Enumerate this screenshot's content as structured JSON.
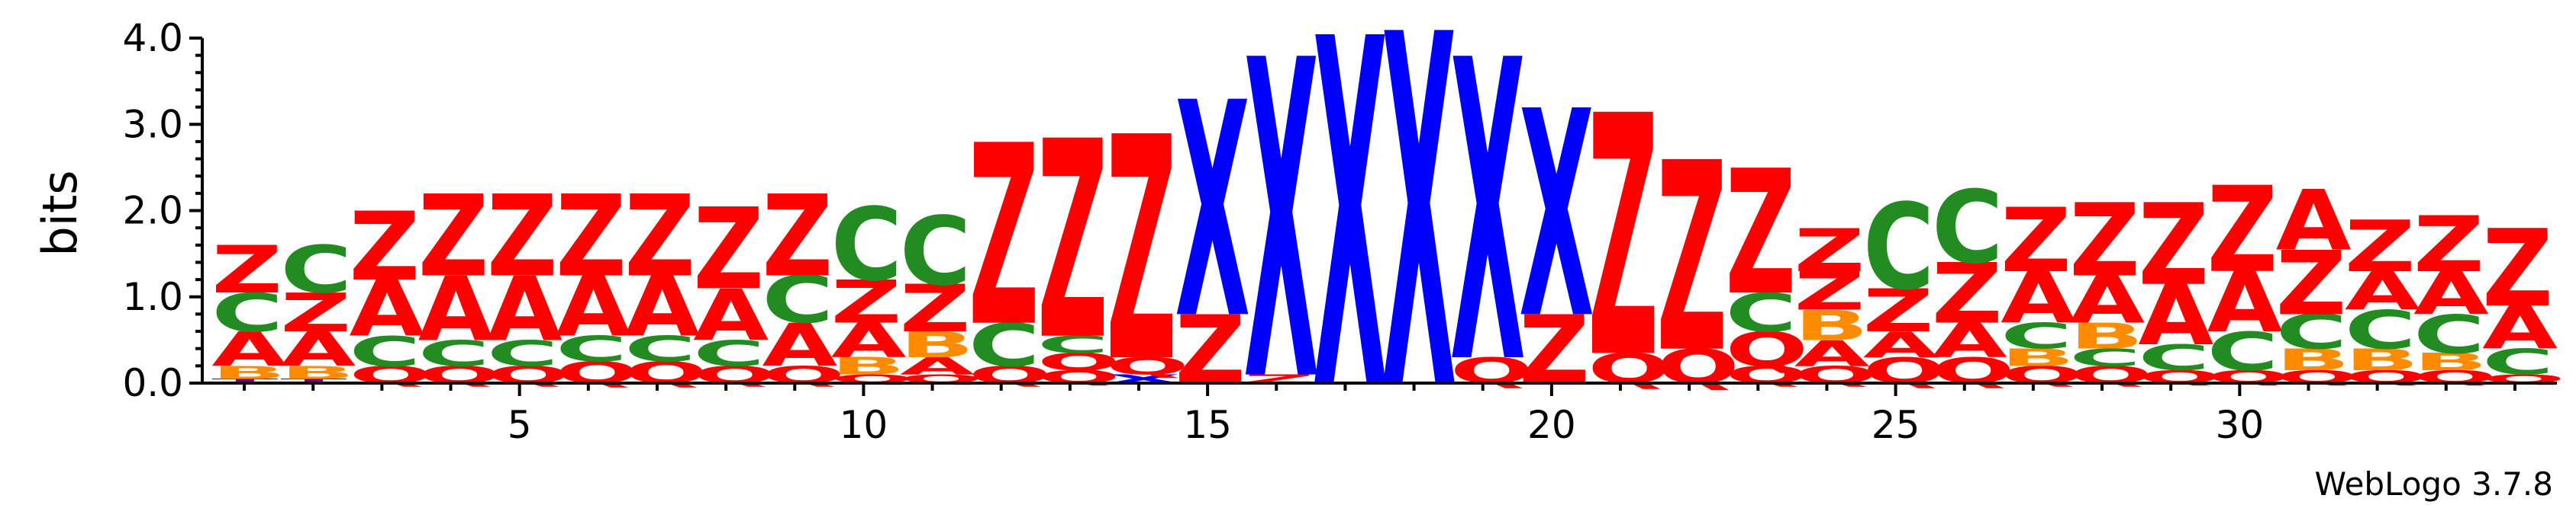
{
  "chart_data": {
    "type": "sequence-logo",
    "ylabel": "bits",
    "ylim": [
      0,
      4.0
    ],
    "yticks": [
      "0.0",
      "1.0",
      "2.0",
      "3.0",
      "4.0"
    ],
    "xticks": [
      5,
      10,
      15,
      20,
      25,
      30
    ],
    "credit": "WebLogo 3.7.8",
    "colors": {
      "Z": "#ff0000",
      "A": "#ff0000",
      "Q": "#ff0000",
      "C": "#228b22",
      "B": "#ff8c00",
      "X": "#0000ff",
      "T": "#800080"
    },
    "positions": [
      {
        "pos": 1,
        "stack": [
          [
            "T",
            0.05
          ],
          [
            "B",
            0.15
          ],
          [
            "A",
            0.4
          ],
          [
            "C",
            0.45
          ],
          [
            "Z",
            0.55
          ]
        ]
      },
      {
        "pos": 2,
        "stack": [
          [
            "T",
            0.05
          ],
          [
            "B",
            0.15
          ],
          [
            "A",
            0.4
          ],
          [
            "Z",
            0.45
          ],
          [
            "C",
            0.55
          ]
        ]
      },
      {
        "pos": 3,
        "stack": [
          [
            "Q",
            0.2
          ],
          [
            "C",
            0.35
          ],
          [
            "A",
            0.65
          ],
          [
            "Z",
            0.8
          ]
        ]
      },
      {
        "pos": 4,
        "stack": [
          [
            "Q",
            0.2
          ],
          [
            "C",
            0.3
          ],
          [
            "A",
            0.75
          ],
          [
            "Z",
            0.95
          ]
        ]
      },
      {
        "pos": 5,
        "stack": [
          [
            "Q",
            0.2
          ],
          [
            "C",
            0.3
          ],
          [
            "A",
            0.75
          ],
          [
            "Z",
            0.95
          ]
        ]
      },
      {
        "pos": 6,
        "stack": [
          [
            "Q",
            0.25
          ],
          [
            "C",
            0.3
          ],
          [
            "A",
            0.7
          ],
          [
            "Z",
            0.95
          ]
        ]
      },
      {
        "pos": 7,
        "stack": [
          [
            "Q",
            0.25
          ],
          [
            "C",
            0.3
          ],
          [
            "A",
            0.7
          ],
          [
            "Z",
            0.95
          ]
        ]
      },
      {
        "pos": 8,
        "stack": [
          [
            "Q",
            0.2
          ],
          [
            "C",
            0.3
          ],
          [
            "A",
            0.6
          ],
          [
            "Z",
            0.95
          ]
        ]
      },
      {
        "pos": 9,
        "stack": [
          [
            "Q",
            0.2
          ],
          [
            "A",
            0.5
          ],
          [
            "C",
            0.55
          ],
          [
            "Z",
            0.95
          ]
        ]
      },
      {
        "pos": 10,
        "stack": [
          [
            "Q",
            0.1
          ],
          [
            "B",
            0.2
          ],
          [
            "A",
            0.4
          ],
          [
            "Z",
            0.5
          ],
          [
            "C",
            0.85
          ]
        ]
      },
      {
        "pos": 11,
        "stack": [
          [
            "Q",
            0.1
          ],
          [
            "A",
            0.2
          ],
          [
            "B",
            0.3
          ],
          [
            "Z",
            0.55
          ],
          [
            "C",
            0.8
          ]
        ]
      },
      {
        "pos": 12,
        "stack": [
          [
            "Q",
            0.2
          ],
          [
            "C",
            0.5
          ],
          [
            "Z",
            2.1
          ]
        ]
      },
      {
        "pos": 13,
        "stack": [
          [
            "Q",
            0.15
          ],
          [
            "Q",
            0.2
          ],
          [
            "C",
            0.2
          ],
          [
            "Z",
            2.3
          ]
        ]
      },
      {
        "pos": 14,
        "stack": [
          [
            "X",
            0.1
          ],
          [
            "Q",
            0.2
          ],
          [
            "Z",
            2.6
          ]
        ]
      },
      {
        "pos": 15,
        "stack": [
          [
            "Z",
            0.8
          ],
          [
            "X",
            2.5
          ]
        ]
      },
      {
        "pos": 16,
        "stack": [
          [
            "Z",
            0.1
          ],
          [
            "X",
            3.7
          ]
        ]
      },
      {
        "pos": 17,
        "stack": [
          [
            "X",
            4.05
          ]
        ]
      },
      {
        "pos": 18,
        "stack": [
          [
            "X",
            4.1
          ]
        ]
      },
      {
        "pos": 19,
        "stack": [
          [
            "Q",
            0.3
          ],
          [
            "X",
            3.5
          ]
        ]
      },
      {
        "pos": 20,
        "stack": [
          [
            "Z",
            0.8
          ],
          [
            "X",
            2.4
          ]
        ]
      },
      {
        "pos": 21,
        "stack": [
          [
            "Q",
            0.35
          ],
          [
            "Z",
            2.8
          ]
        ]
      },
      {
        "pos": 22,
        "stack": [
          [
            "Q",
            0.4
          ],
          [
            "Z",
            2.2
          ]
        ]
      },
      {
        "pos": 23,
        "stack": [
          [
            "Q",
            0.2
          ],
          [
            "Q",
            0.4
          ],
          [
            "C",
            0.45
          ],
          [
            "Z",
            1.45
          ]
        ]
      },
      {
        "pos": 24,
        "stack": [
          [
            "Q",
            0.2
          ],
          [
            "A",
            0.3
          ],
          [
            "B",
            0.35
          ],
          [
            "Z",
            0.45
          ],
          [
            "Z",
            0.5
          ]
        ]
      },
      {
        "pos": 25,
        "stack": [
          [
            "Q",
            0.3
          ],
          [
            "A",
            0.3
          ],
          [
            "Z",
            0.5
          ],
          [
            "C",
            1.0
          ]
        ]
      },
      {
        "pos": 26,
        "stack": [
          [
            "Q",
            0.3
          ],
          [
            "A",
            0.4
          ],
          [
            "Z",
            0.7
          ],
          [
            "C",
            0.85
          ]
        ]
      },
      {
        "pos": 27,
        "stack": [
          [
            "Q",
            0.2
          ],
          [
            "B",
            0.2
          ],
          [
            "C",
            0.3
          ],
          [
            "A",
            0.6
          ],
          [
            "Z",
            0.75
          ]
        ]
      },
      {
        "pos": 28,
        "stack": [
          [
            "Q",
            0.2
          ],
          [
            "C",
            0.2
          ],
          [
            "B",
            0.3
          ],
          [
            "A",
            0.55
          ],
          [
            "Z",
            0.85
          ]
        ]
      },
      {
        "pos": 29,
        "stack": [
          [
            "Q",
            0.15
          ],
          [
            "C",
            0.3
          ],
          [
            "A",
            0.7
          ],
          [
            "Z",
            0.95
          ]
        ]
      },
      {
        "pos": 30,
        "stack": [
          [
            "Q",
            0.15
          ],
          [
            "C",
            0.45
          ],
          [
            "A",
            0.7
          ],
          [
            "Z",
            1.0
          ]
        ]
      },
      {
        "pos": 31,
        "stack": [
          [
            "Q",
            0.15
          ],
          [
            "B",
            0.25
          ],
          [
            "C",
            0.4
          ],
          [
            "Z",
            0.75
          ],
          [
            "A",
            0.7
          ]
        ]
      },
      {
        "pos": 32,
        "stack": [
          [
            "Q",
            0.15
          ],
          [
            "B",
            0.25
          ],
          [
            "C",
            0.45
          ],
          [
            "A",
            0.45
          ],
          [
            "Z",
            0.6
          ]
        ]
      },
      {
        "pos": 33,
        "stack": [
          [
            "Q",
            0.15
          ],
          [
            "B",
            0.2
          ],
          [
            "C",
            0.45
          ],
          [
            "A",
            0.5
          ],
          [
            "Z",
            0.65
          ]
        ]
      },
      {
        "pos": 34,
        "stack": [
          [
            "Q",
            0.1
          ],
          [
            "C",
            0.3
          ],
          [
            "A",
            0.5
          ],
          [
            "Z",
            0.9
          ]
        ]
      }
    ]
  }
}
